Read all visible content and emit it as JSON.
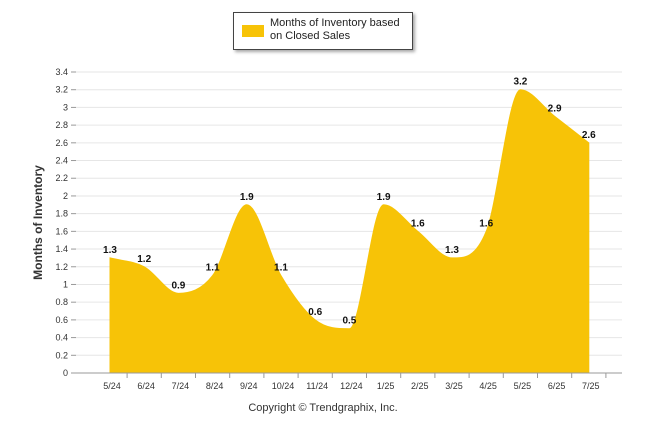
{
  "chart_data": {
    "type": "area",
    "title": "",
    "legend": {
      "placement": "top-center",
      "entries": [
        "Months of Inventory based on Closed Sales"
      ]
    },
    "ylabel": "Months of Inventory",
    "xlabel": "",
    "ylim": [
      0,
      3.4
    ],
    "ytick_step": 0.2,
    "grid": true,
    "color": "#F7C307",
    "categories": [
      "5/24",
      "6/24",
      "7/24",
      "8/24",
      "9/24",
      "10/24",
      "11/24",
      "12/24",
      "1/25",
      "2/25",
      "3/25",
      "4/25",
      "5/25",
      "6/25",
      "7/25"
    ],
    "series": [
      {
        "name": "Months of Inventory based on Closed Sales",
        "values": [
          1.3,
          1.2,
          0.9,
          1.1,
          1.9,
          1.1,
          0.6,
          0.5,
          1.9,
          1.6,
          1.3,
          1.6,
          3.2,
          2.9,
          2.6
        ]
      }
    ]
  },
  "footer": {
    "copyright": "Copyright © Trendgraphix, Inc."
  }
}
